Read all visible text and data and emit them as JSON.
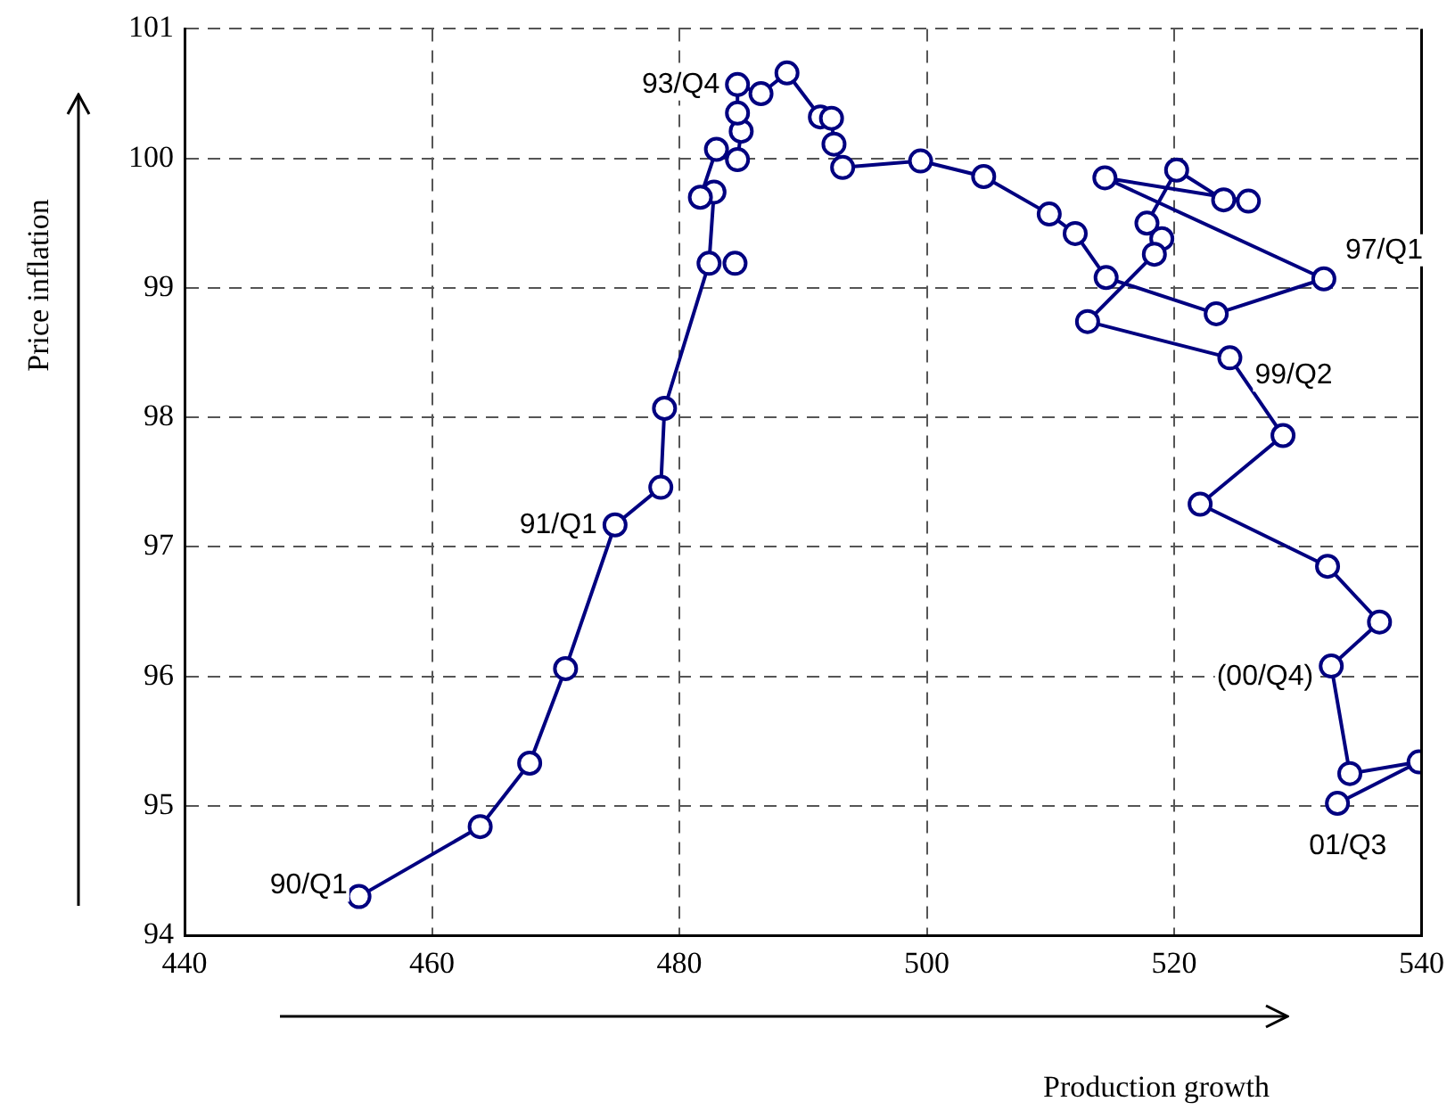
{
  "chart_data": {
    "type": "line",
    "xlabel": "Production growth",
    "ylabel": "Price inflation",
    "xlim": [
      440,
      540
    ],
    "xticks": [
      440,
      460,
      480,
      500,
      520,
      540
    ],
    "ylim": [
      94,
      101
    ],
    "yticks": [
      94,
      95,
      96,
      97,
      98,
      99,
      100,
      101
    ],
    "grid": true,
    "legend": false,
    "marker": "circle",
    "line_style": "solid",
    "series": [
      {
        "color": "#000080",
        "x": [
          454.1,
          463.9,
          467.9,
          470.8,
          474.8,
          478.5,
          478.8,
          482.4,
          482.8,
          481.7,
          483.0,
          484.7,
          485.0,
          484.7,
          484.7,
          486.6,
          488.7,
          491.4,
          492.3,
          492.5,
          493.2,
          499.5,
          504.6,
          509.9,
          512.0,
          514.5,
          523.4,
          532.1,
          514.4,
          526.0,
          524.0,
          520.2,
          517.8,
          519.0,
          518.4,
          513.0,
          524.5,
          528.8,
          522.1,
          532.4,
          536.6,
          532.7,
          534.2,
          539.8,
          533.2,
          null,
          484.5
        ],
        "values": [
          94.3,
          94.84,
          95.33,
          96.06,
          97.17,
          97.46,
          98.07,
          99.19,
          99.74,
          99.7,
          100.07,
          99.99,
          100.21,
          100.35,
          100.57,
          100.5,
          100.66,
          100.32,
          100.31,
          100.11,
          99.93,
          99.98,
          99.86,
          99.57,
          99.42,
          99.08,
          98.8,
          99.07,
          99.85,
          99.67,
          99.68,
          99.91,
          99.5,
          99.38,
          99.26,
          98.74,
          98.46,
          97.86,
          97.33,
          96.85,
          96.42,
          96.08,
          95.25,
          95.34,
          95.02,
          null,
          99.19
        ]
      }
    ],
    "annotations": [
      {
        "text": "90/Q1",
        "x": 454.1,
        "y": 94.3
      },
      {
        "text": "91/Q1",
        "x": 474.8,
        "y": 97.17
      },
      {
        "text": "93/Q4",
        "x": 484.7,
        "y": 100.57
      },
      {
        "text": "97/Q1",
        "x": 532.1,
        "y": 99.07
      },
      {
        "text": "99/Q2",
        "x": 524.5,
        "y": 98.46
      },
      {
        "text": "(00/Q4)",
        "x": 532.7,
        "y": 96.08
      },
      {
        "text": "01/Q3",
        "x": 533.2,
        "y": 95.02
      }
    ]
  }
}
